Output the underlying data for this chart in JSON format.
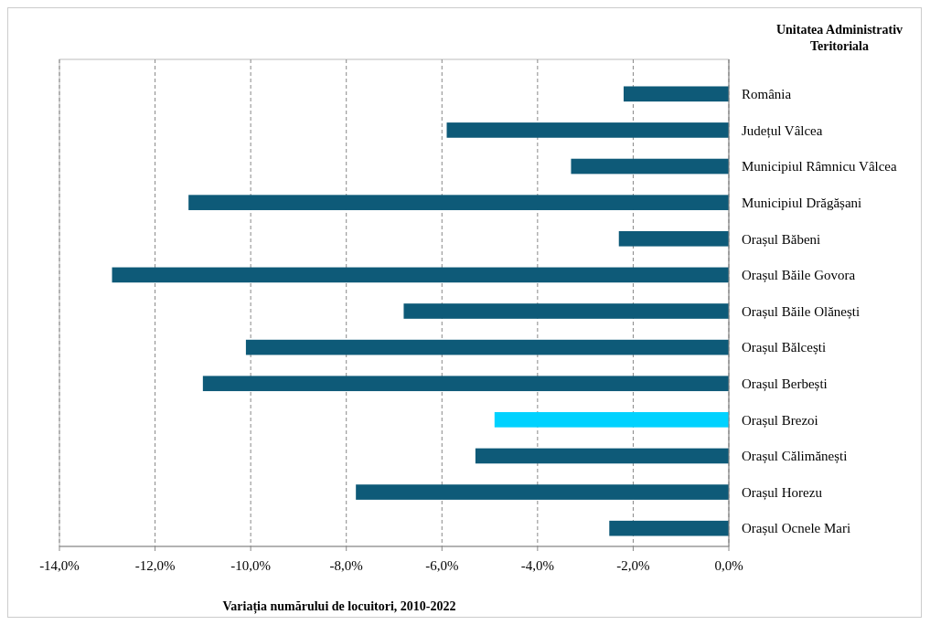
{
  "chart_data": {
    "type": "bar",
    "orientation": "horizontal",
    "xlabel": "Variația numărului de locuitori, 2010-2022",
    "ylabel": "Unitatea Administrativ Teritoriala",
    "categories": [
      "România",
      "Județul Vâlcea",
      "Municipiul Râmnicu Vâlcea",
      "Municipiul Drăgășani",
      "Orașul Băbeni",
      "Orașul Băile Govora",
      "Orașul Băile Olănești",
      "Orașul Bălcești",
      "Orașul Berbești",
      "Orașul Brezoi",
      "Orașul Călimănești",
      "Orașul Horezu",
      "Orașul Ocnele Mari"
    ],
    "values": [
      -2.2,
      -5.9,
      -3.3,
      -11.3,
      -2.3,
      -12.9,
      -6.8,
      -10.1,
      -11.0,
      -4.9,
      -5.3,
      -7.8,
      -2.5
    ],
    "colors": [
      "#0e5a78",
      "#0e5a78",
      "#0e5a78",
      "#0e5a78",
      "#0e5a78",
      "#0e5a78",
      "#0e5a78",
      "#0e5a78",
      "#0e5a78",
      "#00d2ff",
      "#0e5a78",
      "#0e5a78",
      "#0e5a78"
    ],
    "xlim": [
      -14,
      0
    ],
    "xticks": [
      {
        "value": -14,
        "label": "-14,0%"
      },
      {
        "value": -12,
        "label": "-12,0%"
      },
      {
        "value": -10,
        "label": "-10,0%"
      },
      {
        "value": -8,
        "label": "-8,0%"
      },
      {
        "value": -6,
        "label": "-6,0%"
      },
      {
        "value": -4,
        "label": "-4,0%"
      },
      {
        "value": -2,
        "label": "-2,0%"
      },
      {
        "value": 0,
        "label": "0,0%"
      }
    ],
    "grid": "x"
  }
}
